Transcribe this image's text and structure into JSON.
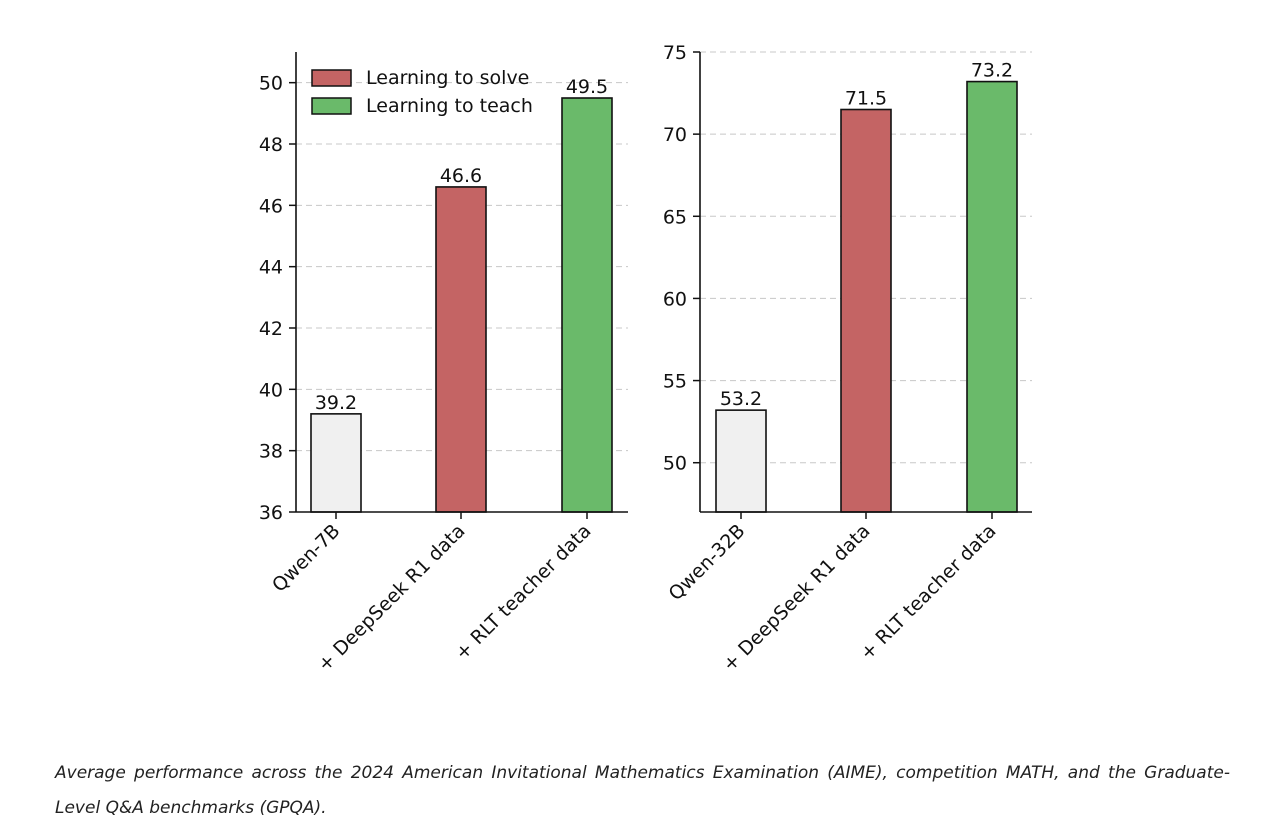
{
  "chart_data": [
    {
      "type": "bar",
      "categories": [
        "Qwen-7B",
        "+ DeepSeek R1 data",
        "+ RLT teacher data"
      ],
      "values": [
        39.2,
        46.6,
        49.5
      ],
      "value_labels": [
        "39.2",
        "46.6",
        "49.5"
      ],
      "bar_colors": [
        "#f0f0f0",
        "#c46464",
        "#6aba6a"
      ],
      "ylim": [
        36,
        51
      ],
      "yticks": [
        36,
        38,
        40,
        42,
        44,
        46,
        48,
        50
      ],
      "ytick_labels": [
        "36",
        "38",
        "40",
        "42",
        "44",
        "46",
        "48",
        "50"
      ],
      "grid": true,
      "legend": {
        "placement": "top-left",
        "entries": [
          {
            "label": "Learning to solve",
            "color": "#c46464"
          },
          {
            "label": "Learning to teach",
            "color": "#6aba6a"
          }
        ]
      }
    },
    {
      "type": "bar",
      "categories": [
        "Qwen-32B",
        "+ DeepSeek R1 data",
        "+ RLT teacher data"
      ],
      "values": [
        53.2,
        71.5,
        73.2
      ],
      "value_labels": [
        "53.2",
        "71.5",
        "73.2"
      ],
      "bar_colors": [
        "#f0f0f0",
        "#c46464",
        "#6aba6a"
      ],
      "ylim": [
        47,
        75
      ],
      "yticks": [
        50,
        55,
        60,
        65,
        70,
        75
      ],
      "ytick_labels": [
        "50",
        "55",
        "60",
        "65",
        "70",
        "75"
      ],
      "grid": true
    }
  ],
  "caption": "Average performance across the 2024 American Invitational Mathematics Examination (AIME), competition MATH, and the Graduate-Level Q&A benchmarks (GPQA)."
}
